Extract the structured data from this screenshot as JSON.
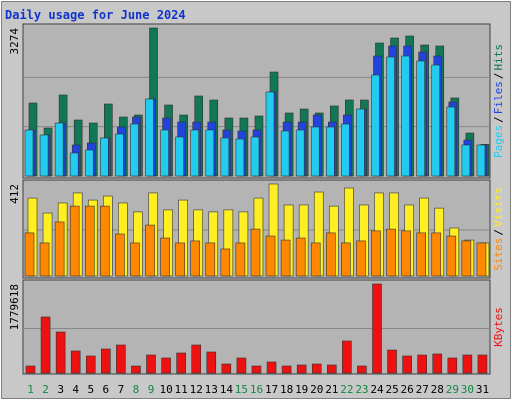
{
  "chart_data": [
    {
      "type": "bar",
      "title": "Daily usage for June 2024",
      "ylim": [
        0,
        3274
      ],
      "yticks": [
        3274
      ],
      "legend_separator": "/",
      "series": [
        {
          "name": "Pages",
          "color": "#22ccee",
          "values": [
            1018,
            907,
            1172,
            509,
            575,
            841,
            929,
            1150,
            1703,
            1018,
            863,
            1018,
            1018,
            841,
            818,
            863,
            1858,
            995,
            1018,
            1084,
            1084,
            1150,
            1482,
            2234,
            2632,
            2654,
            2544,
            2455,
            1526,
            686,
            686
          ]
        },
        {
          "name": "Files",
          "color": "#2244dd",
          "values": [
            1018,
            907,
            1172,
            686,
            730,
            841,
            1084,
            1305,
            1703,
            1283,
            1194,
            1194,
            1194,
            1018,
            995,
            1018,
            1858,
            1194,
            1194,
            1349,
            1194,
            1349,
            1482,
            2654,
            2876,
            2876,
            2743,
            2654,
            1637,
            796,
            686
          ]
        },
        {
          "name": "Hits",
          "color": "#117755",
          "values": [
            1615,
            1062,
            1792,
            1239,
            1172,
            1593,
            1305,
            1349,
            3274,
            1571,
            1349,
            1770,
            1681,
            1283,
            1283,
            1327,
            2300,
            1394,
            1482,
            1394,
            1549,
            1681,
            1681,
            2942,
            3053,
            3097,
            2898,
            2876,
            1726,
            951,
            700
          ]
        }
      ]
    },
    {
      "type": "bar",
      "ylim": [
        0,
        412
      ],
      "yticks": [
        412
      ],
      "legend_separator": "/",
      "series": [
        {
          "name": "Sites",
          "color": "#ff8800",
          "values": [
            193,
            148,
            242,
            313,
            313,
            313,
            188,
            148,
            228,
            170,
            148,
            157,
            148,
            121,
            148,
            210,
            179,
            161,
            170,
            148,
            193,
            148,
            157,
            202,
            210,
            202,
            193,
            193,
            179,
            157,
            148
          ]
        },
        {
          "name": "Visits",
          "color": "#ffee22",
          "values": [
            349,
            282,
            327,
            372,
            340,
            358,
            327,
            287,
            372,
            296,
            340,
            296,
            287,
            296,
            287,
            349,
            412,
            318,
            318,
            376,
            313,
            394,
            318,
            372,
            372,
            318,
            349,
            304,
            215,
            161,
            148
          ]
        }
      ]
    },
    {
      "type": "bar",
      "ylim": [
        0,
        1779618
      ],
      "yticks": [
        1779618
      ],
      "categories": [
        "1",
        "2",
        "3",
        "4",
        "5",
        "6",
        "7",
        "8",
        "9",
        "10",
        "11",
        "12",
        "13",
        "14",
        "15",
        "16",
        "17",
        "18",
        "19",
        "20",
        "21",
        "22",
        "23",
        "24",
        "25",
        "26",
        "27",
        "28",
        "29",
        "30",
        "31"
      ],
      "highlighted_categories": [
        0,
        1,
        7,
        8,
        14,
        15,
        21,
        22,
        28,
        29
      ],
      "highlight_color": "#118844",
      "series": [
        {
          "name": "KBytes",
          "color": "#ee1111",
          "values": [
            140000,
            1120000,
            820000,
            440000,
            340000,
            480000,
            560000,
            140000,
            360000,
            300000,
            400000,
            560000,
            420000,
            180000,
            300000,
            140000,
            220000,
            140000,
            160000,
            180000,
            160000,
            640000,
            140000,
            1779618,
            460000,
            340000,
            360000,
            380000,
            300000,
            360000,
            360000
          ]
        }
      ]
    }
  ]
}
